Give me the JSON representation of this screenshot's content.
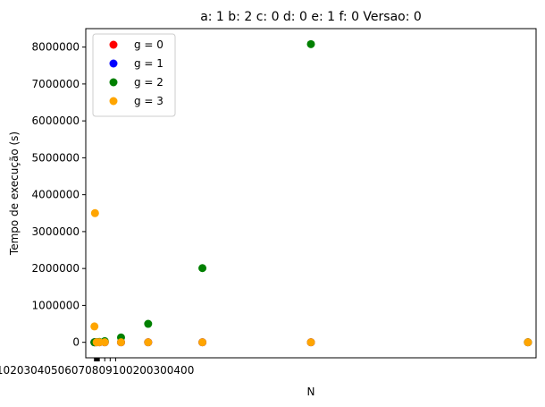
{
  "chart_data": {
    "type": "scatter",
    "title": "a: 1 b: 2 c: 0 d: 0 e: 1 f: 0 Versao: 0",
    "xlabel": "N",
    "ylabel": "Tempo de execução (s)",
    "xlim": [
      -150,
      8150
    ],
    "ylim": [
      -420000,
      8500000
    ],
    "y_ticks": [
      0,
      1000000,
      2000000,
      3000000,
      4000000,
      5000000,
      6000000,
      7000000,
      8000000
    ],
    "y_tick_labels": [
      "0",
      "1000000",
      "2000000",
      "3000000",
      "4000000",
      "5000000",
      "6000000",
      "7000000",
      "8000000"
    ],
    "x_ticks": [
      10,
      20,
      30,
      40,
      50,
      60,
      70,
      80,
      90,
      100,
      200,
      300,
      400
    ],
    "x_tick_labels": [
      "10",
      "20",
      "30",
      "40",
      "50",
      "60",
      "70",
      "80",
      "90",
      "100",
      "200",
      "300",
      "400"
    ],
    "x_tick_labels_text": "10203040506070809100200300400",
    "legend": {
      "position": "upper-left"
    },
    "series": [
      {
        "name": "g = 0",
        "color": "#ff0000",
        "x": [
          10,
          20,
          50,
          100,
          200,
          500,
          1000,
          2000,
          4000,
          8000
        ],
        "y": [
          0,
          0,
          0,
          0,
          0,
          0,
          0,
          0,
          0,
          0
        ]
      },
      {
        "name": "g = 1",
        "color": "#0000ff",
        "x": [
          10,
          20,
          50,
          100,
          200,
          500,
          1000,
          2000,
          4000,
          8000
        ],
        "y": [
          0,
          0,
          0,
          0,
          0,
          0,
          0,
          0,
          0,
          0
        ]
      },
      {
        "name": "g = 2",
        "color": "#008000",
        "x": [
          10,
          20,
          50,
          100,
          200,
          500,
          1000,
          2000,
          4000,
          8000
        ],
        "y": [
          0,
          0,
          2000,
          10000,
          30000,
          130000,
          500000,
          2010000,
          8080000,
          0
        ]
      },
      {
        "name": "g = 3",
        "color": "#ffa500",
        "x": [
          10,
          20,
          50,
          100,
          200,
          500,
          1000,
          2000,
          4000,
          8000
        ],
        "y": [
          430000,
          3500000,
          0,
          0,
          0,
          0,
          0,
          0,
          0,
          0
        ]
      }
    ]
  }
}
